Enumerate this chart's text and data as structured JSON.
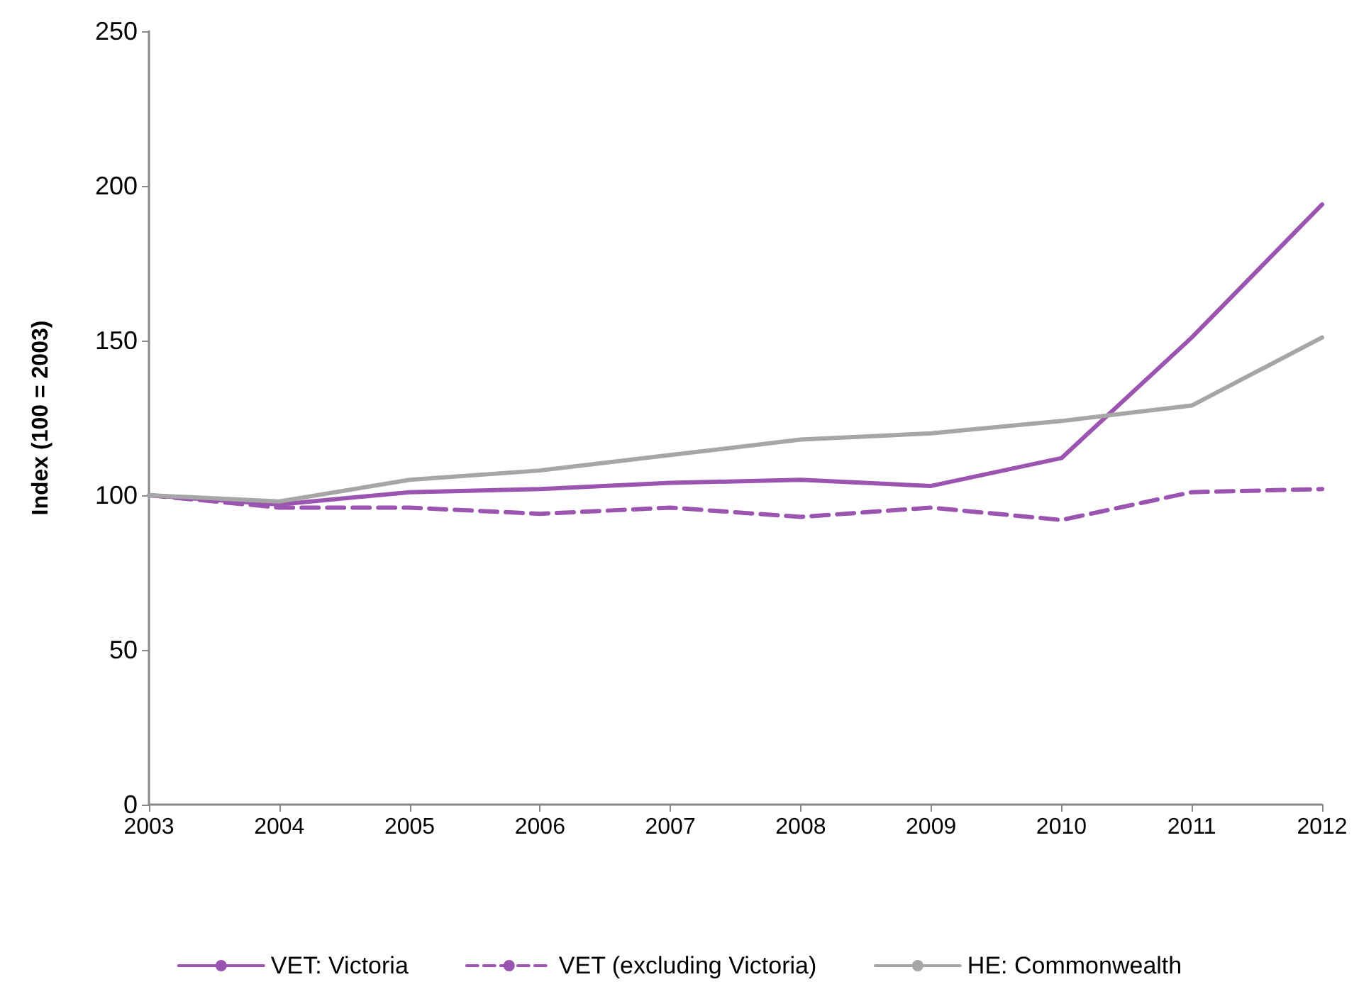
{
  "chart_data": {
    "type": "line",
    "ylabel": "Index (100 = 2003)",
    "categories": [
      "2003",
      "2004",
      "2005",
      "2006",
      "2007",
      "2008",
      "2009",
      "2010",
      "2011",
      "2012"
    ],
    "series": [
      {
        "name": "VET: Victoria",
        "color": "#9b55b0",
        "line_style": "solid",
        "values": [
          100,
          97,
          101,
          102,
          104,
          105,
          103,
          112,
          151,
          194
        ]
      },
      {
        "name": "VET (excluding Victoria)",
        "color": "#9b55b0",
        "line_style": "dashed",
        "values": [
          100,
          96,
          96,
          94,
          96,
          93,
          96,
          92,
          101,
          102
        ]
      },
      {
        "name": "HE: Commonwealth",
        "color": "#a6a6a6",
        "line_style": "solid",
        "values": [
          100,
          98,
          105,
          108,
          113,
          118,
          120,
          124,
          129,
          151
        ]
      }
    ],
    "ylim": [
      0,
      250
    ],
    "yticks": [
      0,
      50,
      100,
      150,
      200,
      250
    ],
    "grid": false,
    "legend": "bottom",
    "marker": "none"
  }
}
